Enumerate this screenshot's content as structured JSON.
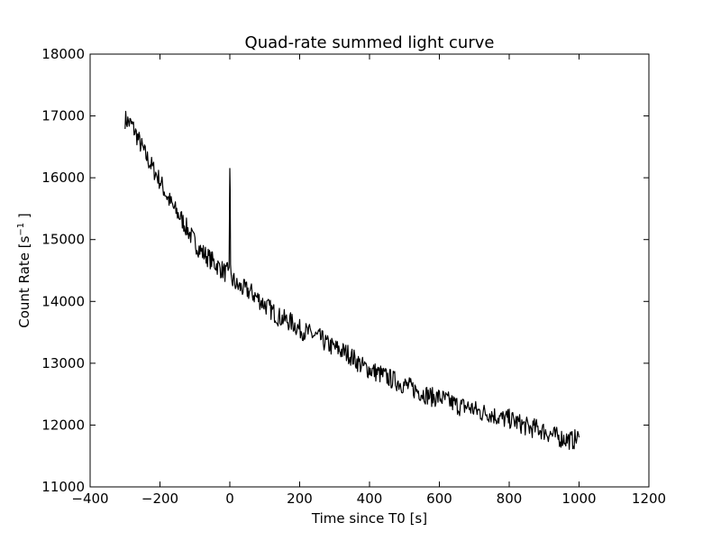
{
  "chart_data": {
    "type": "line",
    "title": "Quad-rate summed light curve",
    "xlabel": "Time since T0 [s]",
    "ylabel_main": "Count Rate [s",
    "ylabel_sup": "−1",
    "ylabel_tail": " ]",
    "xlim": [
      -400,
      1200
    ],
    "ylim": [
      11000,
      18000
    ],
    "xticks": [
      -400,
      -200,
      0,
      200,
      400,
      600,
      800,
      1000,
      1200
    ],
    "xtick_labels": [
      "−400",
      "−200",
      "0",
      "200",
      "400",
      "600",
      "800",
      "1000",
      "1200"
    ],
    "yticks": [
      11000,
      12000,
      13000,
      14000,
      15000,
      16000,
      17000,
      18000
    ],
    "ytick_labels": [
      "11000",
      "12000",
      "13000",
      "14000",
      "15000",
      "16000",
      "17000",
      "18000"
    ],
    "grid": false,
    "series": [
      {
        "color": "#000000",
        "x": [
          -300,
          -280,
          -260,
          -240,
          -220,
          -200,
          -180,
          -160,
          -140,
          -120,
          -100,
          -80,
          -60,
          -40,
          -20,
          -10,
          -5,
          -2,
          0,
          1,
          2,
          5,
          10,
          20,
          40,
          60,
          80,
          100,
          120,
          140,
          160,
          180,
          200,
          220,
          240,
          260,
          280,
          300,
          320,
          340,
          360,
          380,
          400,
          420,
          440,
          460,
          480,
          500,
          520,
          540,
          560,
          580,
          600,
          620,
          640,
          660,
          680,
          700,
          720,
          740,
          760,
          780,
          800,
          820,
          840,
          860,
          880,
          900,
          920,
          940,
          960,
          980,
          1000
        ],
        "y": [
          16950,
          16850,
          16600,
          16350,
          16150,
          15950,
          15700,
          15500,
          15350,
          15150,
          14950,
          14800,
          14700,
          14600,
          14500,
          14450,
          14500,
          14550,
          16150,
          15800,
          14600,
          14300,
          14350,
          14250,
          14200,
          14150,
          14050,
          13950,
          13850,
          13750,
          13700,
          13650,
          13550,
          13500,
          13450,
          13400,
          13300,
          13250,
          13200,
          13150,
          13050,
          12950,
          12900,
          12850,
          12800,
          12750,
          12700,
          12650,
          12600,
          12550,
          12500,
          12450,
          12450,
          12400,
          12350,
          12300,
          12300,
          12250,
          12200,
          12200,
          12150,
          12100,
          12100,
          12050,
          12000,
          11950,
          11950,
          11900,
          11850,
          11800,
          11780,
          11750,
          11800
        ]
      }
    ]
  }
}
